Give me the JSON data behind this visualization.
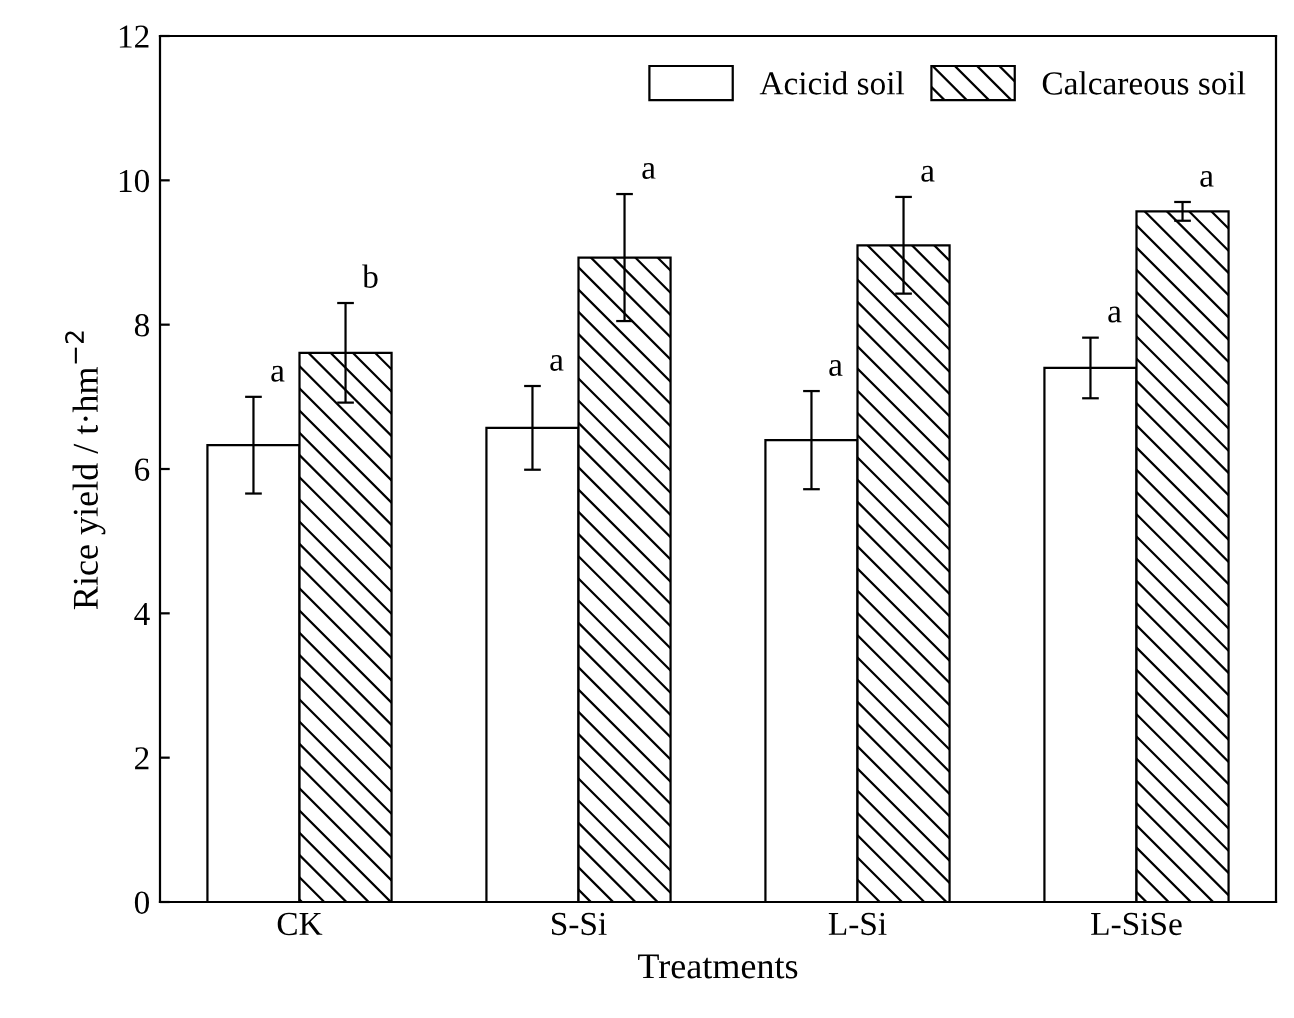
{
  "chart_data": {
    "type": "bar",
    "xlabel": "Treatments",
    "ylabel": "Rice yield / t·hm$^{−2}$",
    "categories": [
      "CK",
      "S-Si",
      "L-Si",
      "L-SiSe"
    ],
    "series": [
      {
        "name": "Acicid soil",
        "color": "#ffffff",
        "values": [
          6.33,
          6.57,
          6.4,
          7.4
        ],
        "errors": [
          0.67,
          0.58,
          0.68,
          0.42
        ]
      },
      {
        "name": "Calcareous soil",
        "color": "#000000",
        "values": [
          7.61,
          8.93,
          9.1,
          9.57
        ],
        "errors": [
          0.69,
          0.88,
          0.67,
          0.13
        ]
      }
    ],
    "annotations": [
      "a",
      "b",
      "a",
      "a",
      "a",
      "a",
      "a",
      "a"
    ],
    "ylim": [
      0,
      12
    ],
    "yticks": [
      0,
      2,
      4,
      6,
      8,
      10,
      12
    ],
    "legend": "top right",
    "grid": false
  }
}
